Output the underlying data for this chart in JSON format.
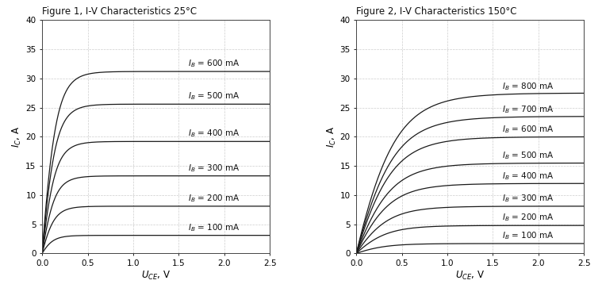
{
  "fig1_title": "Figure 1, I-V Characteristics 25°C",
  "fig2_title": "Figure 2, I-V Characteristics 150°C",
  "xlim": [
    0,
    2.5
  ],
  "ylim": [
    0,
    40
  ],
  "xticks": [
    0,
    0.5,
    1.0,
    1.5,
    2.0,
    2.5
  ],
  "yticks": [
    0,
    5,
    10,
    15,
    20,
    25,
    30,
    35,
    40
  ],
  "fig1_curves": [
    {
      "IB": "600 mA",
      "Isat": 31.2,
      "knee_x": 0.75,
      "steepness": 5.5
    },
    {
      "IB": "500 mA",
      "Isat": 25.6,
      "knee_x": 0.72,
      "steepness": 5.5
    },
    {
      "IB": "400 mA",
      "Isat": 19.2,
      "knee_x": 0.7,
      "steepness": 5.5
    },
    {
      "IB": "300 mA",
      "Isat": 13.3,
      "knee_x": 0.68,
      "steepness": 5.5
    },
    {
      "IB": "200 mA",
      "Isat": 8.1,
      "knee_x": 0.65,
      "steepness": 5.5
    },
    {
      "IB": "100 mA",
      "Isat": 3.1,
      "knee_x": 0.6,
      "steepness": 5.5
    }
  ],
  "fig2_curves": [
    {
      "IB": "800 mA",
      "Isat": 27.5,
      "knee_x": 1.35,
      "steepness": 3.5
    },
    {
      "IB": "700 mA",
      "Isat": 23.5,
      "knee_x": 1.3,
      "steepness": 3.5
    },
    {
      "IB": "600 mA",
      "Isat": 20.0,
      "knee_x": 1.25,
      "steepness": 3.5
    },
    {
      "IB": "500 mA",
      "Isat": 15.5,
      "knee_x": 1.2,
      "steepness": 3.5
    },
    {
      "IB": "400 mA",
      "Isat": 12.0,
      "knee_x": 1.15,
      "steepness": 3.5
    },
    {
      "IB": "300 mA",
      "Isat": 8.1,
      "knee_x": 1.1,
      "steepness": 3.5
    },
    {
      "IB": "200 mA",
      "Isat": 4.8,
      "knee_x": 1.05,
      "steepness": 3.5
    },
    {
      "IB": "100 mA",
      "Isat": 1.7,
      "knee_x": 1.0,
      "steepness": 3.5
    }
  ],
  "line_color": "#1a1a1a",
  "grid_color": "#c8c8c8",
  "bg_color": "#ffffff",
  "label_fontsize": 7.5,
  "tick_fontsize": 7.5,
  "title_fontsize": 8.5,
  "axis_label_fontsize": 8.5
}
